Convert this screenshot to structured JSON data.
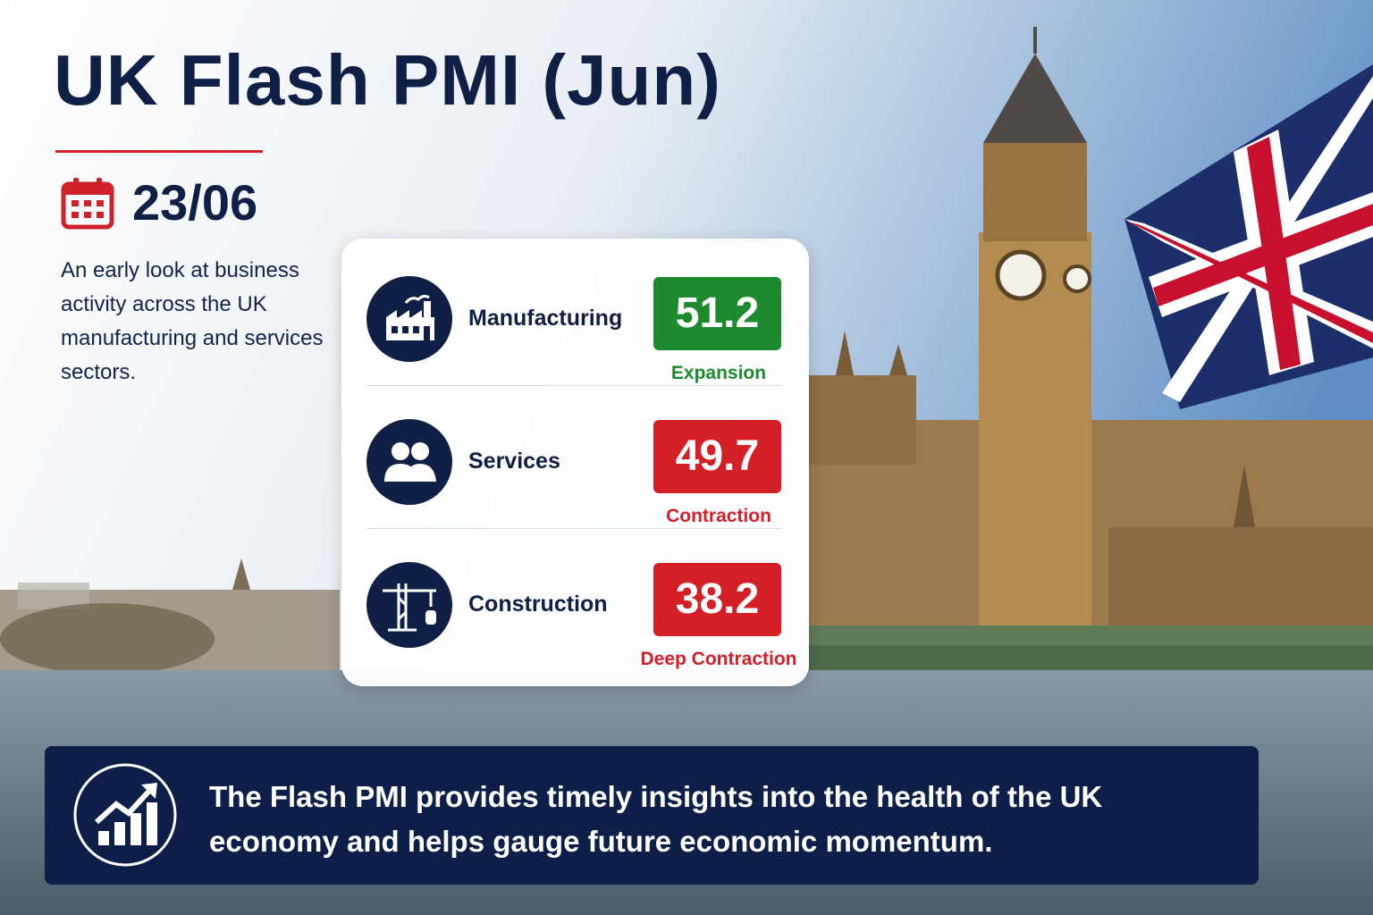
{
  "header": {
    "title": "UK Flash PMI (Jun)",
    "date": "23/06",
    "description": "An early look at business activity across the UK manufacturing and services sectors."
  },
  "indicators": [
    {
      "label": "Manufacturing",
      "value": "51.2",
      "status": "Expansion",
      "color": "#1e8a2e"
    },
    {
      "label": "Services",
      "value": "49.7",
      "status": "Contraction",
      "color": "#d41f26"
    },
    {
      "label": "Construction",
      "value": "38.2",
      "status": "Deep Contraction",
      "color": "#d41f26"
    }
  ],
  "footer": {
    "text": "The Flash PMI provides timely insights into the health of the UK economy and helps gauge future economic momentum."
  }
}
